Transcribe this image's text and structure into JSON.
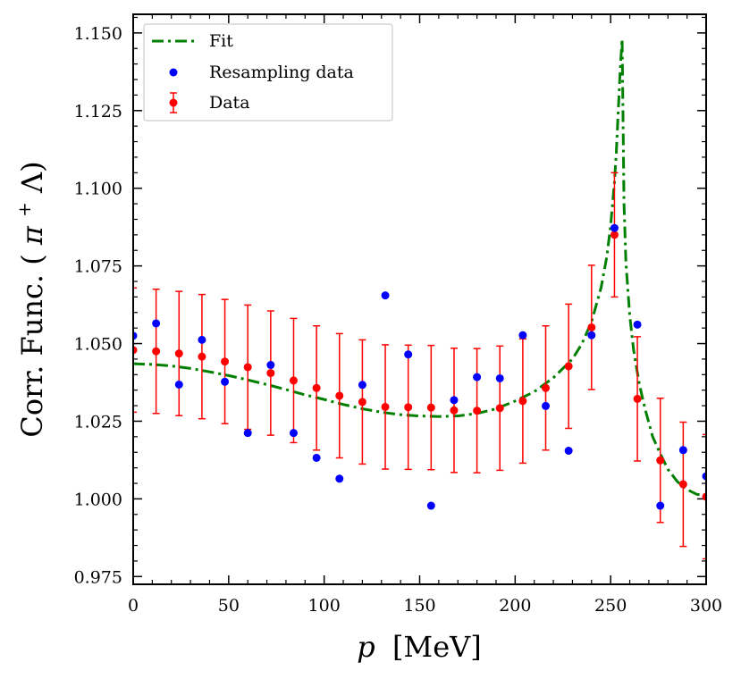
{
  "chart_data": {
    "type": "scatter",
    "xlabel_var": "p",
    "xlabel_unit": "[MeV]",
    "ylabel_main": "Corr. Func. (",
    "ylabel_pi": "π",
    "ylabel_sup": "+",
    "ylabel_lambda": " Λ)",
    "xlim": [
      0,
      300
    ],
    "ylim": [
      0.9725,
      1.156
    ],
    "xticks": [
      0,
      50,
      100,
      150,
      200,
      250,
      300
    ],
    "xtick_labels": [
      "0",
      "50",
      "100",
      "150",
      "200",
      "250",
      "300"
    ],
    "yticks": [
      0.975,
      1.0,
      1.025,
      1.05,
      1.075,
      1.1,
      1.125,
      1.15
    ],
    "ytick_labels": [
      "0.975",
      "1.000",
      "1.025",
      "1.050",
      "1.075",
      "1.100",
      "1.125",
      "1.150"
    ],
    "grid": false,
    "legend_position": "top-left",
    "legend": [
      {
        "label": "Fit",
        "kind": "line"
      },
      {
        "label": "Resampling data",
        "kind": "point"
      },
      {
        "label": "Data",
        "kind": "errorbar"
      }
    ],
    "colors": {
      "fit": "#008000",
      "resampling": "#0000ff",
      "data": "#ff0000"
    },
    "series": [
      {
        "name": "Fit",
        "type": "line",
        "x": [
          0,
          10,
          20,
          30,
          40,
          50,
          60,
          70,
          80,
          90,
          100,
          110,
          120,
          130,
          140,
          150,
          160,
          170,
          180,
          190,
          200,
          210,
          220,
          230,
          235,
          240,
          245,
          248,
          250,
          252,
          253,
          254,
          255,
          256,
          257,
          258,
          260,
          262,
          265,
          268,
          272,
          276,
          280,
          285,
          290,
          295,
          300
        ],
        "y": [
          1.0435,
          1.0433,
          1.0428,
          1.042,
          1.0409,
          1.0397,
          1.0383,
          1.0368,
          1.0352,
          1.0335,
          1.032,
          1.0304,
          1.029,
          1.0279,
          1.0271,
          1.0267,
          1.0265,
          1.0267,
          1.0275,
          1.029,
          1.0315,
          1.0345,
          1.039,
          1.045,
          1.05,
          1.057,
          1.068,
          1.078,
          1.088,
          1.102,
          1.112,
          1.125,
          1.138,
          1.148,
          1.095,
          1.076,
          1.059,
          1.048,
          1.037,
          1.029,
          1.02,
          1.0145,
          1.0095,
          1.0055,
          1.003,
          1.0015,
          1.001
        ]
      },
      {
        "name": "Resampling data",
        "type": "scatter",
        "x": [
          0,
          12,
          24,
          36,
          48,
          60,
          72,
          84,
          96,
          108,
          120,
          132,
          144,
          156,
          168,
          180,
          192,
          204,
          216,
          228,
          240,
          252,
          264,
          276,
          288,
          300
        ],
        "y": [
          1.0525,
          1.0565,
          1.0368,
          1.0512,
          1.0377,
          1.0212,
          1.0431,
          1.0212,
          1.0132,
          1.0065,
          1.0367,
          1.0655,
          1.0465,
          0.9978,
          1.0318,
          1.0392,
          1.0388,
          1.0527,
          1.0299,
          1.0155,
          1.0527,
          1.0872,
          1.0561,
          0.9978,
          1.0157,
          1.0073
        ]
      },
      {
        "name": "Data",
        "type": "errorbar",
        "x": [
          0,
          12,
          24,
          36,
          48,
          60,
          72,
          84,
          96,
          108,
          120,
          132,
          144,
          156,
          168,
          180,
          192,
          204,
          216,
          228,
          240,
          252,
          264,
          276,
          288,
          300
        ],
        "y": [
          1.0479,
          1.0475,
          1.0468,
          1.0458,
          1.0442,
          1.0424,
          1.0405,
          1.0381,
          1.0357,
          1.0332,
          1.0312,
          1.0296,
          1.0295,
          1.0294,
          1.0285,
          1.0284,
          1.0292,
          1.0315,
          1.0357,
          1.0427,
          1.0552,
          1.085,
          1.0322,
          1.0124,
          1.0047,
          1.0007
        ],
        "err": [
          0.02,
          0.02,
          0.02,
          0.02,
          0.02,
          0.02,
          0.02,
          0.02,
          0.02,
          0.02,
          0.02,
          0.02,
          0.02,
          0.02,
          0.02,
          0.02,
          0.02,
          0.02,
          0.02,
          0.02,
          0.02,
          0.02,
          0.02,
          0.02,
          0.02,
          0.02
        ]
      }
    ]
  }
}
